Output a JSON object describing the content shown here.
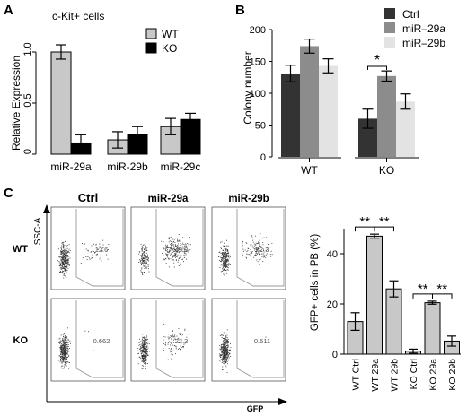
{
  "panels": {
    "A": "A",
    "B": "B",
    "C": "C"
  },
  "chart_data": [
    {
      "panel": "A",
      "type": "bar",
      "title": "c-Kit+ cells",
      "ylabel": "Relative Expression",
      "ylim": [
        0,
        1.0
      ],
      "yticks": [
        "0",
        "0.5",
        "1.0"
      ],
      "categories": [
        "miR-29a",
        "miR-29b",
        "miR-29c"
      ],
      "legend_position": "top-right",
      "series": [
        {
          "name": "WT",
          "color": "#c8c8c8",
          "values": [
            1.0,
            0.14,
            0.27
          ],
          "errors": [
            0.07,
            0.08,
            0.08
          ]
        },
        {
          "name": "KO",
          "color": "#000000",
          "values": [
            0.11,
            0.19,
            0.34
          ],
          "errors": [
            0.08,
            0.08,
            0.06
          ]
        }
      ]
    },
    {
      "panel": "B",
      "type": "bar",
      "ylabel": "Colony number",
      "ylim": [
        0,
        200
      ],
      "yticks": [
        "0",
        "50",
        "100",
        "150",
        "200"
      ],
      "categories": [
        "WT",
        "KO"
      ],
      "legend_position": "top-right",
      "significance": [
        {
          "group": "KO",
          "between": [
            "Ctrl",
            "miR–29a"
          ],
          "label": "*"
        }
      ],
      "series": [
        {
          "name": "Ctrl",
          "color": "#333333",
          "values": [
            131,
            60
          ],
          "errors": [
            13,
            15
          ]
        },
        {
          "name": "miR–29a",
          "color": "#8c8c8c",
          "values": [
            174,
            127
          ],
          "errors": [
            11,
            8
          ]
        },
        {
          "name": "miR–29b",
          "color": "#e3e3e3",
          "values": [
            143,
            87
          ],
          "errors": [
            11,
            12
          ]
        }
      ]
    },
    {
      "panel": "C-bar",
      "type": "bar",
      "ylabel": "GFP+ cells in PB (%)",
      "ylim": [
        0,
        50
      ],
      "yticks": [
        "0",
        "20",
        "40"
      ],
      "categories": [
        "WT Ctrl",
        "WT 29a",
        "WT 29b",
        "KO Ctrl",
        "KO 29a",
        "KO 29b"
      ],
      "color": "#c8c8c8",
      "values": [
        13,
        47,
        26,
        1.2,
        20.5,
        5.2
      ],
      "errors": [
        3.5,
        0.8,
        3.2,
        0.8,
        0.6,
        2
      ],
      "significance": [
        {
          "from": 0,
          "to": 1,
          "label": "**"
        },
        {
          "from": 1,
          "to": 2,
          "label": "**"
        },
        {
          "from": 3,
          "to": 4,
          "label": "**"
        },
        {
          "from": 4,
          "to": 5,
          "label": "**"
        }
      ]
    },
    {
      "panel": "C-flow",
      "type": "scatter",
      "ylabel": "SSC-A",
      "xlabel": "GFP",
      "columns": [
        "Ctrl",
        "miR-29a",
        "miR-29b"
      ],
      "rows": [
        "WT",
        "KO"
      ],
      "gate_values": [
        [
          "12.6",
          "49.8",
          "22.3"
        ],
        [
          "0.662",
          "22.3",
          "0.511"
        ]
      ]
    }
  ]
}
